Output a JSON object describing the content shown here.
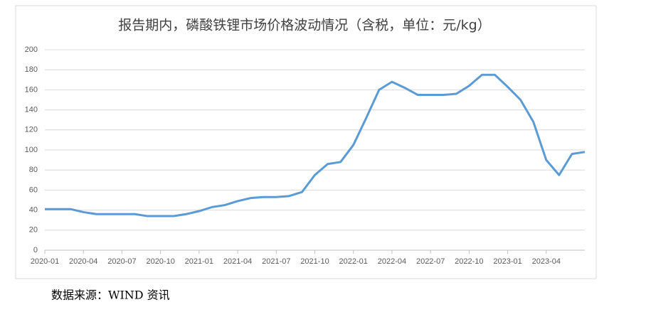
{
  "chart_data": {
    "type": "line",
    "title": "报告期内，磷酸铁锂市场价格波动情况（含税，单位：元/kg）",
    "categories": [
      "2020-01",
      null,
      null,
      "2020-04",
      null,
      null,
      "2020-07",
      null,
      null,
      "2020-10",
      null,
      null,
      "2021-01",
      null,
      null,
      "2021-04",
      null,
      null,
      "2021-07",
      null,
      null,
      "2021-10",
      null,
      null,
      "2022-01",
      null,
      null,
      "2022-04",
      null,
      null,
      "2022-07",
      null,
      null,
      "2022-10",
      null,
      null,
      "2023-01",
      null,
      null,
      "2023-04",
      null,
      null,
      null
    ],
    "series": [
      {
        "color": "#5b9bd5",
        "values": [
          41,
          41,
          41,
          38,
          36,
          36,
          36,
          36,
          34,
          34,
          34,
          36,
          39,
          43,
          45,
          49,
          52,
          53,
          53,
          54,
          58,
          75,
          86,
          88,
          105,
          132,
          160,
          168,
          162,
          155,
          155,
          155,
          156,
          164,
          175,
          175,
          163,
          150,
          128,
          90,
          75,
          96,
          98
        ]
      }
    ],
    "ylim": [
      0,
      200
    ],
    "yticks": [
      0,
      20,
      40,
      60,
      80,
      100,
      120,
      140,
      160,
      180,
      200
    ],
    "grid": true,
    "source": "数据来源：WIND 资讯"
  }
}
